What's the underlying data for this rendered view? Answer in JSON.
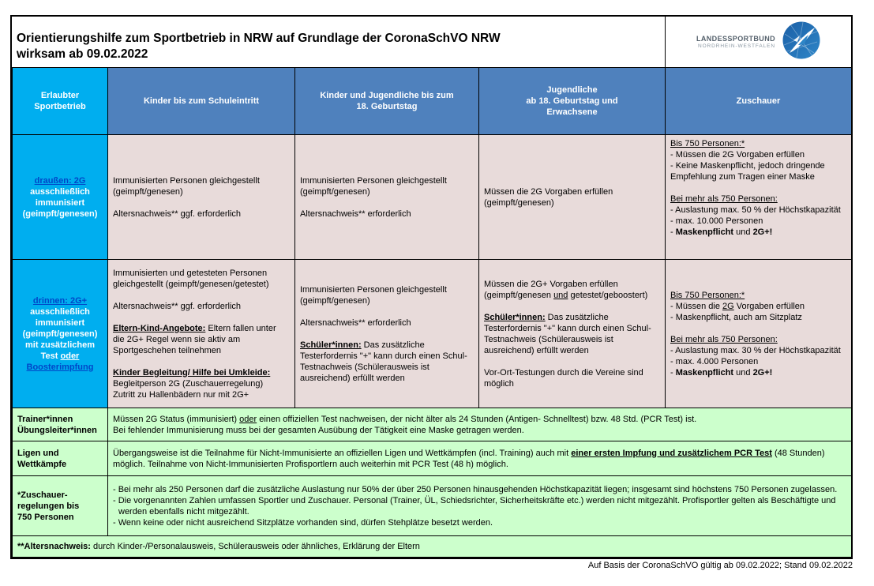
{
  "title": {
    "line1": "Orientierungshilfe zum Sportbetrieb in NRW auf Grundlage der CoronaSchVO NRW",
    "line2": "wirksam ab 09.02.2022"
  },
  "logo": {
    "line1": "LANDESSPORTBUND",
    "line2": "NORDRHEIN-WESTFALEN"
  },
  "footer": "Auf Basis der CoronaSchVO gültig ab 09.02.2022; Stand 09.02.2022",
  "colors": {
    "cyan": "#00aeef",
    "header_blue": "#4f81bd",
    "pink": "#e8dbda",
    "green": "#ccffcc",
    "accent_blue": "#0047c8"
  },
  "table": {
    "headers": {
      "col1": [
        {
          "runs": [
            {
              "t": "Erlaubter"
            }
          ]
        },
        {
          "runs": [
            {
              "t": "Sportbetrieb"
            }
          ]
        }
      ],
      "col2": [
        {
          "runs": [
            {
              "t": "Kinder bis zum Schuleintritt"
            }
          ]
        }
      ],
      "col3": [
        {
          "runs": [
            {
              "t": "Kinder und Jugendliche bis zum"
            }
          ]
        },
        {
          "runs": [
            {
              "t": "18. Geburtstag"
            }
          ]
        }
      ],
      "col4": [
        {
          "runs": [
            {
              "t": "Jugendliche"
            }
          ]
        },
        {
          "runs": [
            {
              "t": "ab 18. Geburtstag und"
            }
          ]
        },
        {
          "runs": [
            {
              "t": "Erwachsene"
            }
          ]
        }
      ],
      "col5": [
        {
          "runs": [
            {
              "t": "Zuschauer"
            }
          ]
        }
      ]
    },
    "rows": {
      "draussen": {
        "label": [
          {
            "runs": [
              {
                "t": "draußen: 2G",
                "u": 1,
                "c": "#0047c8"
              }
            ]
          },
          {
            "runs": [
              {
                "t": "ausschließlich"
              }
            ]
          },
          {
            "runs": [
              {
                "t": "immunisiert"
              }
            ]
          },
          {
            "runs": [
              {
                "t": "(geimpft/genesen)"
              }
            ]
          }
        ],
        "cells": {
          "c2": [
            {
              "runs": [
                {
                  "t": "Immunisierten Personen gleichgestellt (geimpft/genesen)"
                }
              ]
            },
            {
              "runs": []
            },
            {
              "runs": [
                {
                  "t": "Altersnachweis** ggf. erforderlich"
                }
              ]
            }
          ],
          "c3": [
            {
              "runs": [
                {
                  "t": "Immunisierten Personen gleichgestellt (geimpft/genesen)"
                }
              ]
            },
            {
              "runs": []
            },
            {
              "runs": [
                {
                  "t": "Altersnachweis** erforderlich"
                }
              ]
            }
          ],
          "c4": [
            {
              "runs": [
                {
                  "t": "Müssen die 2G Vorgaben erfüllen (geimpft/genesen)"
                }
              ]
            }
          ],
          "c5": [
            {
              "runs": [
                {
                  "t": "Bis 750 Personen:*",
                  "u": 1
                }
              ]
            },
            {
              "runs": [
                {
                  "t": "- Müssen die 2G Vorgaben erfüllen"
                }
              ]
            },
            {
              "runs": [
                {
                  "t": "- Keine Maskenpflicht, jedoch dringende Empfehlung zum Tragen einer Maske"
                }
              ]
            },
            {
              "runs": []
            },
            {
              "runs": [
                {
                  "t": "Bei mehr als 750 Personen:",
                  "u": 1
                }
              ]
            },
            {
              "runs": [
                {
                  "t": "- Auslastung max. 50 % der Höchstkapazität"
                }
              ]
            },
            {
              "runs": [
                {
                  "t": "- max. 10.000 Personen"
                }
              ]
            },
            {
              "runs": [
                {
                  "t": "- "
                },
                {
                  "t": "Maskenpflicht",
                  "b": 1
                },
                {
                  "t": " und "
                },
                {
                  "t": "2G+!",
                  "b": 1
                }
              ]
            }
          ]
        }
      },
      "drinnen": {
        "label": [
          {
            "runs": [
              {
                "t": "drinnen: 2G+",
                "u": 1,
                "c": "#0047c8"
              }
            ]
          },
          {
            "runs": [
              {
                "t": "ausschließlich"
              }
            ]
          },
          {
            "runs": [
              {
                "t": "immunisiert"
              }
            ]
          },
          {
            "runs": [
              {
                "t": "(geimpft/genesen)"
              }
            ]
          },
          {
            "runs": [
              {
                "t": "mit zusätzlichem"
              }
            ]
          },
          {
            "runs": [
              {
                "t": "Test "
              },
              {
                "t": "oder",
                "u": 1
              }
            ]
          },
          {
            "runs": [
              {
                "t": "Boosterimpfung",
                "u": 1,
                "c": "#0047c8"
              }
            ]
          }
        ],
        "cells": {
          "c2": [
            {
              "runs": [
                {
                  "t": "Immunisierten und getesteten Personen gleichgestellt (geimpft/genesen/getestet)"
                }
              ]
            },
            {
              "runs": []
            },
            {
              "runs": [
                {
                  "t": "Altersnachweis** ggf. erforderlich"
                }
              ]
            },
            {
              "runs": []
            },
            {
              "runs": [
                {
                  "t": "Eltern-Kind-Angebote:",
                  "b": 1,
                  "u": 1
                },
                {
                  "t": " Eltern fallen unter die 2G+ Regel wenn sie aktiv am Sportgeschehen teilnehmen"
                }
              ]
            },
            {
              "runs": []
            },
            {
              "runs": [
                {
                  "t": "Kinder Begleitung/ Hilfe bei Umkleide:",
                  "b": 1,
                  "u": 1
                }
              ]
            },
            {
              "runs": [
                {
                  "t": "Begleitperson 2G (Zuschauerregelung)"
                }
              ]
            },
            {
              "runs": [
                {
                  "t": "Zutritt zu Hallenbädern nur mit 2G+"
                }
              ]
            }
          ],
          "c3": [
            {
              "runs": [
                {
                  "t": "Immunisierten Personen gleichgestellt (geimpft/genesen)"
                }
              ]
            },
            {
              "runs": []
            },
            {
              "runs": [
                {
                  "t": "Altersnachweis** erforderlich"
                }
              ]
            },
            {
              "runs": []
            },
            {
              "runs": [
                {
                  "t": "Schüler*innen:",
                  "b": 1,
                  "u": 1
                },
                {
                  "t": " Das zusätzliche Testerfordernis \"+\"  kann durch einen Schul-Testnachweis (Schülerausweis ist ausreichend) erfüllt werden"
                }
              ]
            }
          ],
          "c4": [
            {
              "runs": [
                {
                  "t": "Müssen die 2G+ Vorgaben erfüllen (geimpft/genesen "
                },
                {
                  "t": "und",
                  "u": 1
                },
                {
                  "t": " getestet/geboostert)"
                }
              ]
            },
            {
              "runs": []
            },
            {
              "runs": [
                {
                  "t": "Schüler*innen:",
                  "b": 1,
                  "u": 1
                },
                {
                  "t": " Das zusätzliche Testerfordernis \"+\"  kann durch einen Schul-Testnachweis (Schülerausweis ist ausreichend) erfüllt werden"
                }
              ]
            },
            {
              "runs": []
            },
            {
              "runs": [
                {
                  "t": "Vor-Ort-Testungen durch die Vereine sind möglich"
                }
              ]
            }
          ],
          "c5": [
            {
              "runs": [
                {
                  "t": "Bis 750 Personen:*",
                  "u": 1
                }
              ]
            },
            {
              "runs": [
                {
                  "t": "- Müssen die "
                },
                {
                  "t": "2G",
                  "u": 1
                },
                {
                  "t": " Vorgaben erfüllen"
                }
              ]
            },
            {
              "runs": [
                {
                  "t": "- Maskenpflicht, auch am Sitzplatz"
                }
              ]
            },
            {
              "runs": []
            },
            {
              "runs": [
                {
                  "t": "Bei mehr als 750 Personen:",
                  "u": 1
                }
              ]
            },
            {
              "runs": [
                {
                  "t": "- Auslastung max. 30 % der Höchstkapazität"
                }
              ]
            },
            {
              "runs": [
                {
                  "t": "- max. 4.000 Personen"
                }
              ]
            },
            {
              "runs": [
                {
                  "t": "- "
                },
                {
                  "t": "Maskenpflicht",
                  "b": 1
                },
                {
                  "t": " und "
                },
                {
                  "t": "2G+!",
                  "b": 1
                }
              ]
            }
          ]
        }
      },
      "trainer": {
        "label": [
          {
            "runs": [
              {
                "t": "Trainer*innen"
              }
            ]
          },
          {
            "runs": [
              {
                "t": "Übungsleiter*innen"
              }
            ]
          }
        ],
        "content": [
          {
            "runs": [
              {
                "t": "Müssen 2G Status (immunisiert) "
              },
              {
                "t": "oder",
                "u": 1
              },
              {
                "t": " einen offiziellen Test nachweisen, der nicht älter als 24 Stunden (Antigen- Schnelltest) bzw. 48 Std. (PCR Test) ist."
              }
            ]
          },
          {
            "runs": [
              {
                "t": "Bei fehlender Immunisierung muss bei der gesamten Ausübung der Tätigkeit eine Maske getragen werden."
              }
            ]
          }
        ]
      },
      "ligen": {
        "label": [
          {
            "runs": [
              {
                "t": "Ligen und"
              }
            ]
          },
          {
            "runs": [
              {
                "t": "Wettkämpfe"
              }
            ]
          }
        ],
        "content": [
          {
            "runs": [
              {
                "t": "Übergangsweise ist die Teilnahme für Nicht-Immunisierte an offiziellen Ligen und Wettkämpfen (incl. Training) auch mit "
              },
              {
                "t": "einer ersten Impfung und zusätzlichem PCR Test",
                "b": 1,
                "u": 1
              },
              {
                "t": " (48 Stunden) möglich. Teilnahme von Nicht-Immunisierten Profisportlern auch weiterhin mit PCR Test (48 h) möglich."
              }
            ]
          }
        ]
      },
      "zuschauerregeln": {
        "label": [
          {
            "runs": [
              {
                "t": "*Zuschauer-"
              }
            ]
          },
          {
            "runs": [
              {
                "t": "regelungen bis"
              }
            ]
          },
          {
            "runs": [
              {
                "t": "750 Personen"
              }
            ]
          }
        ],
        "content": [
          {
            "hang": true,
            "runs": [
              {
                "t": "- Bei mehr als 250 Personen darf die zusätzliche Auslastung nur 50% der über 250 Personen hinausgehenden Höchstkapazität liegen; insgesamt sind höchstens 750 Personen zugelassen."
              }
            ]
          },
          {
            "hang": true,
            "runs": [
              {
                "t": "- Die vorgenannten Zahlen umfassen Sportler und Zuschauer. Personal (Trainer, ÜL, Schiedsrichter, Sicherheitskräfte etc.) werden nicht mitgezählt. Profisportler gelten als Beschäftigte und werden ebenfalls nicht mitgezählt."
              }
            ]
          },
          {
            "hang": true,
            "runs": [
              {
                "t": "- Wenn keine oder nicht ausreichend Sitzplätze vorhanden sind, dürfen Stehplätze besetzt werden."
              }
            ]
          }
        ]
      },
      "altersnachweis": {
        "content": [
          {
            "runs": [
              {
                "t": "**Altersnachweis:",
                "b": 1
              },
              {
                "t": " durch Kinder-/Personalausweis, Schülerausweis oder ähnliches, Erklärung der Eltern"
              }
            ]
          }
        ]
      }
    }
  }
}
